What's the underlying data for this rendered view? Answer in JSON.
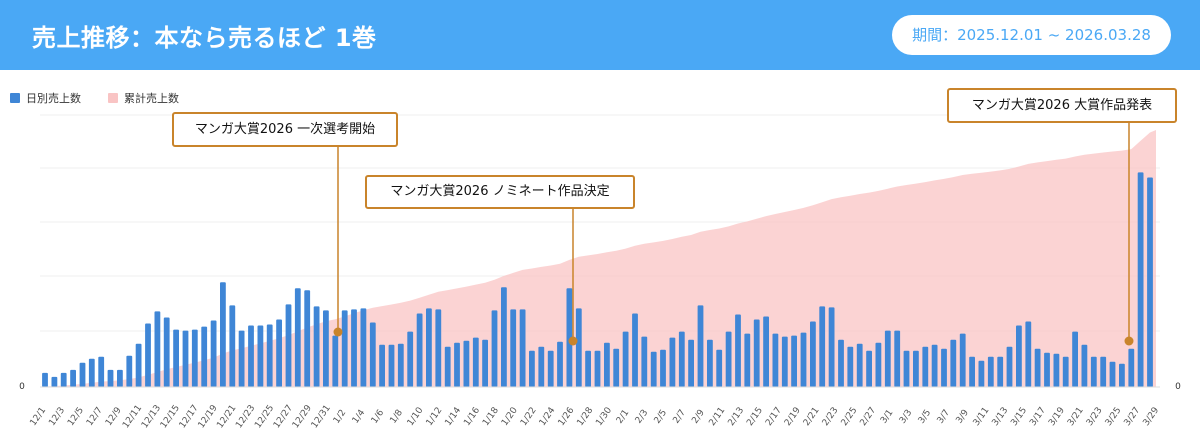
{
  "header": {
    "title": "売上推移：本なら売るほど 1巻",
    "period": "期間：2025.12.01 ~ 2026.03.28"
  },
  "colors": {
    "header_bg": "#4aa8f5",
    "daily_bar": "#3f86d6",
    "cumulative_area": "#f9c4c4",
    "annotation": "#c9842b"
  },
  "chart_data": {
    "type": "bar",
    "legend": [
      "日別売上数",
      "累計売上数"
    ],
    "legend_position": "top-left",
    "y_left_ticks": [
      "0"
    ],
    "y_right_ticks": [
      "0"
    ],
    "x_labels": [
      "12/1",
      "12/3",
      "12/5",
      "12/7",
      "12/9",
      "12/11",
      "12/13",
      "12/15",
      "12/17",
      "12/19",
      "12/21",
      "12/23",
      "12/25",
      "12/27",
      "12/29",
      "12/31",
      "1/2",
      "1/4",
      "1/6",
      "1/8",
      "1/10",
      "1/12",
      "1/14",
      "1/16",
      "1/18",
      "1/20",
      "1/22",
      "1/24",
      "1/26",
      "1/28",
      "1/30",
      "2/1",
      "2/3",
      "2/5",
      "2/7",
      "2/9",
      "2/11",
      "2/13",
      "2/15",
      "2/17",
      "2/19",
      "2/21",
      "2/23",
      "2/25",
      "2/27",
      "3/1",
      "3/3",
      "3/5",
      "3/7",
      "3/9",
      "3/11",
      "3/13",
      "3/15",
      "3/17",
      "3/19",
      "3/21",
      "3/23",
      "3/25",
      "3/27",
      "3/29"
    ],
    "daily_values": [
      14,
      10,
      14,
      17,
      24,
      28,
      30,
      17,
      17,
      31,
      43,
      63,
      75,
      69,
      57,
      56,
      57,
      60,
      66,
      104,
      81,
      56,
      61,
      61,
      62,
      67,
      82,
      98,
      96,
      80,
      76,
      51,
      76,
      77,
      78,
      64,
      42,
      42,
      43,
      55,
      73,
      78,
      77,
      40,
      44,
      46,
      49,
      47,
      76,
      99,
      77,
      77,
      36,
      40,
      36,
      45,
      98,
      78,
      36,
      36,
      44,
      38,
      55,
      73,
      50,
      35,
      37,
      49,
      55,
      47,
      81,
      47,
      37,
      55,
      72,
      53,
      67,
      70,
      53,
      50,
      51,
      54,
      65,
      80,
      79,
      47,
      40,
      43,
      36,
      44,
      56,
      56,
      36,
      36,
      40,
      42,
      38,
      47,
      53,
      30,
      26,
      30,
      30,
      40,
      61,
      65,
      38,
      34,
      33,
      30,
      55,
      42,
      30,
      30,
      25,
      23,
      38,
      213,
      208
    ],
    "daily_ylim": [
      0,
      270
    ],
    "cumulative_series_note": "",
    "annotations": [
      {
        "label": "マンガ大賞2026 一次選考開始",
        "date": "1/1"
      },
      {
        "label": "マンガ大賞2026 ノミネート作品決定",
        "date": "1/26"
      },
      {
        "label": "マンガ大賞2026 大賞作品発表",
        "date": "3/26"
      }
    ]
  }
}
